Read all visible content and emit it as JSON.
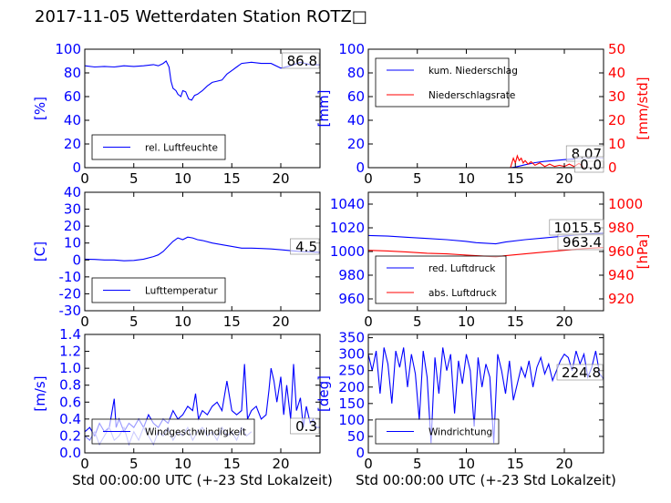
{
  "page": {
    "title": "2017-11-05 Wetterdaten Station ROTZ□"
  },
  "colors": {
    "primary": "#0000ff",
    "secondary": "#ff0000",
    "light_wind": "#8080ff",
    "axis": "#000000"
  },
  "chart_data": [
    {
      "id": "humidity",
      "type": "line",
      "title": "",
      "xlabel": "",
      "ylabel": "[%]",
      "xlim": [
        0,
        24
      ],
      "ylim": [
        0,
        100
      ],
      "xticks": [
        0,
        5,
        10,
        15,
        20
      ],
      "yticks": [
        0,
        20,
        40,
        60,
        80,
        100
      ],
      "legend_position": "lower-left",
      "series": [
        {
          "name": "rel. Luftfeuchte",
          "color": "#0000ff",
          "x": [
            0,
            1,
            2,
            3,
            4,
            5,
            6,
            7,
            7.5,
            8,
            8.3,
            8.6,
            8.8,
            9,
            9.3,
            9.5,
            9.8,
            10,
            10.3,
            10.6,
            10.9,
            11.2,
            11.5,
            12,
            12.5,
            13,
            13.5,
            14,
            14.5,
            15,
            15.5,
            16,
            17,
            18,
            19,
            20,
            21,
            22,
            23,
            24
          ],
          "y": [
            86,
            85,
            85.5,
            85,
            86,
            85.5,
            86,
            87,
            86,
            88,
            90,
            85,
            73,
            67,
            65,
            62,
            60,
            65,
            64,
            58,
            57,
            61,
            62,
            65,
            69,
            72,
            73,
            74,
            79,
            82,
            85,
            88,
            89,
            88,
            88,
            84,
            86,
            89,
            87,
            86.8
          ]
        }
      ],
      "annotations": [
        {
          "text": "86.8"
        }
      ]
    },
    {
      "id": "precipitation",
      "type": "line",
      "title": "",
      "xlabel": "",
      "ylabel": "[mm]",
      "ylabel_right": "[mm/std]",
      "xlim": [
        0,
        24
      ],
      "ylim": [
        0,
        100
      ],
      "ylim_right": [
        0,
        50
      ],
      "xticks": [
        0,
        5,
        10,
        15,
        20
      ],
      "yticks": [
        0,
        20,
        40,
        60,
        80,
        100
      ],
      "yticks_right": [
        0,
        10,
        20,
        30,
        40,
        50
      ],
      "legend_position": "upper-left",
      "series": [
        {
          "name": "kum. Niederschlag",
          "axis": "left",
          "color": "#0000ff",
          "x": [
            0,
            14.5,
            15,
            16,
            17,
            18,
            19,
            20,
            21,
            22,
            23,
            24
          ],
          "y": [
            0,
            0,
            0.5,
            2.5,
            4.2,
            5.3,
            6.0,
            6.8,
            7.4,
            7.8,
            8.0,
            8.07
          ]
        },
        {
          "name": "Niederschlagsrate",
          "axis": "right",
          "color": "#ff0000",
          "x": [
            0,
            14.5,
            14.8,
            15.0,
            15.2,
            15.4,
            15.6,
            15.8,
            16.0,
            16.3,
            16.6,
            17.0,
            17.5,
            18,
            18.5,
            19,
            19.5,
            20,
            20.5,
            21,
            21.5,
            22,
            24
          ],
          "y": [
            0,
            0,
            4,
            2,
            5,
            3,
            4,
            2,
            3,
            1.5,
            2.5,
            1,
            2,
            0.5,
            1.5,
            0.5,
            1,
            0.5,
            1.5,
            0.5,
            1.8,
            0,
            0
          ]
        }
      ],
      "annotations": [
        {
          "text": "8.07"
        },
        {
          "text": "0.0"
        }
      ]
    },
    {
      "id": "temperature",
      "type": "line",
      "title": "",
      "xlabel": "",
      "ylabel": "[C]",
      "xlim": [
        0,
        24
      ],
      "ylim": [
        -30,
        40
      ],
      "xticks": [
        0,
        5,
        10,
        15,
        20
      ],
      "yticks": [
        -30,
        -20,
        -10,
        0,
        10,
        20,
        30,
        40
      ],
      "legend_position": "lower-left",
      "series": [
        {
          "name": "Lufttemperatur",
          "color": "#0000ff",
          "x": [
            0,
            1,
            2,
            3,
            4,
            5,
            6,
            7,
            7.5,
            8,
            8.5,
            9,
            9.5,
            10,
            10.5,
            11,
            11.5,
            12,
            13,
            14,
            15,
            16,
            17,
            18,
            19,
            20,
            21,
            22,
            23,
            24
          ],
          "y": [
            0.5,
            0.3,
            0,
            0,
            -0.5,
            -0.3,
            0.5,
            2,
            3,
            5,
            8,
            11,
            13,
            12,
            13.5,
            13,
            12,
            11.5,
            10,
            9,
            8,
            7,
            7,
            6.8,
            6.5,
            6,
            5.5,
            5,
            4.8,
            4.5
          ]
        }
      ],
      "annotations": [
        {
          "text": "4.5"
        }
      ]
    },
    {
      "id": "pressure",
      "type": "line",
      "title": "",
      "xlabel": "",
      "ylabel": "",
      "ylabel_right": "[hPa]",
      "xlim": [
        0,
        24
      ],
      "ylim": [
        950,
        1050
      ],
      "ylim_right": [
        910,
        1010
      ],
      "xticks": [
        0,
        5,
        10,
        15,
        20
      ],
      "yticks": [
        960,
        980,
        1000,
        1020,
        1040
      ],
      "yticks_right": [
        920,
        940,
        960,
        980,
        1000
      ],
      "legend_position": "lower-left",
      "series": [
        {
          "name": "red. Luftdruck",
          "axis": "left",
          "color": "#0000ff",
          "x": [
            0,
            2,
            4,
            6,
            8,
            10,
            11,
            12,
            13,
            14,
            16,
            18,
            20,
            22,
            24
          ],
          "y": [
            1013.5,
            1013,
            1012,
            1011,
            1010,
            1008.5,
            1007.5,
            1007,
            1006.5,
            1008,
            1010,
            1011.5,
            1013,
            1014.5,
            1015.5
          ]
        },
        {
          "name": "abs. Luftdruck",
          "axis": "right",
          "color": "#ff0000",
          "x": [
            0,
            2,
            4,
            6,
            8,
            10,
            11,
            12,
            13,
            14,
            16,
            18,
            20,
            22,
            24
          ],
          "y": [
            961,
            960.5,
            959.5,
            958.5,
            958,
            957,
            956.5,
            956,
            955.5,
            956.5,
            958,
            959.5,
            961,
            962.5,
            963.4
          ]
        }
      ],
      "annotations": [
        {
          "text": "1015.5"
        },
        {
          "text": "963.4"
        }
      ]
    },
    {
      "id": "windspeed",
      "type": "line",
      "title": "",
      "xlabel": "Std 00:00:00 UTC (+-23 Std Lokalzeit)",
      "ylabel": "[m/s]",
      "xlim": [
        0,
        24
      ],
      "ylim": [
        0,
        1.4
      ],
      "xticks": [
        0,
        5,
        10,
        15,
        20
      ],
      "yticks": [
        0.0,
        0.2,
        0.4,
        0.6,
        0.8,
        1.0,
        1.2,
        1.4
      ],
      "legend_position": "lower-left",
      "series": [
        {
          "name": "Windgeschwindigkeit",
          "color": "#0000ff",
          "x": [
            0,
            0.5,
            1,
            1.5,
            2,
            2.5,
            3,
            3.2,
            3.5,
            4,
            4.5,
            5,
            5.5,
            6,
            6.5,
            7,
            7.5,
            8,
            8.5,
            9,
            9.5,
            10,
            10.5,
            11,
            11.3,
            11.6,
            12,
            12.5,
            13,
            13.5,
            14,
            14.5,
            15,
            15.5,
            16,
            16.3,
            16.6,
            17,
            17.5,
            18,
            18.5,
            18.8,
            19,
            19.3,
            19.6,
            20,
            20.3,
            20.6,
            21,
            21.3,
            21.6,
            22,
            22.3,
            22.6,
            23,
            23.3,
            23.6,
            24
          ],
          "y": [
            0.25,
            0.3,
            0.2,
            0.35,
            0.25,
            0.3,
            0.64,
            0.3,
            0.4,
            0.25,
            0.35,
            0.3,
            0.4,
            0.3,
            0.45,
            0.35,
            0.3,
            0.4,
            0.35,
            0.5,
            0.4,
            0.45,
            0.55,
            0.5,
            0.7,
            0.4,
            0.5,
            0.45,
            0.55,
            0.6,
            0.5,
            0.85,
            0.5,
            0.45,
            0.5,
            1.05,
            0.4,
            0.5,
            0.55,
            0.4,
            0.45,
            0.75,
            1.0,
            0.85,
            0.6,
            0.9,
            0.45,
            0.8,
            0.4,
            1.05,
            0.5,
            0.65,
            0.3,
            0.55,
            0.35,
            0.4,
            0.3,
            0.3
          ]
        },
        {
          "name": "",
          "color": "#8080ff",
          "x": [
            0,
            0.5,
            1,
            1.5,
            2,
            2.5,
            3,
            3.5,
            4,
            4.5,
            5,
            5.5,
            6,
            6.5,
            7,
            7.5,
            8,
            8.5,
            9,
            9.5,
            10,
            10.5,
            11,
            11.5,
            12,
            12.5,
            13,
            13.5,
            14,
            14.5,
            15,
            15.5,
            16,
            16.5,
            17
          ],
          "y": [
            0.2,
            0.15,
            0.25,
            0.1,
            0.2,
            0.3,
            0.15,
            0.2,
            0.3,
            0.1,
            0.25,
            0.15,
            0.3,
            0.2,
            0.1,
            0.25,
            0.2,
            0.3,
            0.15,
            0.25,
            0.2,
            0.3,
            0.15,
            0.25,
            0.3,
            0.2,
            0.25,
            0.15,
            0.3,
            0.2,
            0.25,
            0.15,
            0.3,
            0.2,
            0.25
          ]
        }
      ],
      "annotations": [
        {
          "text": "0.3"
        }
      ]
    },
    {
      "id": "winddirection",
      "type": "line",
      "title": "",
      "xlabel": "Std 00:00:00 UTC (+-23 Std Lokalzeit)",
      "ylabel": "[deg]",
      "xlim": [
        0,
        24
      ],
      "ylim": [
        0,
        360
      ],
      "xticks": [
        0,
        5,
        10,
        15,
        20
      ],
      "yticks": [
        0,
        50,
        100,
        150,
        200,
        250,
        300,
        350
      ],
      "legend_position": "lower-left",
      "series": [
        {
          "name": "Windrichtung",
          "color": "#0000ff",
          "x": [
            0,
            0.4,
            0.8,
            1.2,
            1.6,
            2,
            2.4,
            2.8,
            3.2,
            3.6,
            4,
            4.4,
            4.8,
            5.2,
            5.6,
            6,
            6.4,
            6.8,
            7.2,
            7.6,
            8,
            8.4,
            8.8,
            9.2,
            9.6,
            10,
            10.4,
            10.8,
            11.2,
            11.6,
            12,
            12.4,
            12.8,
            13.2,
            13.6,
            14,
            14.4,
            14.8,
            15.2,
            15.6,
            16,
            16.4,
            16.8,
            17.2,
            17.6,
            18,
            18.4,
            18.8,
            19.2,
            19.6,
            20,
            20.4,
            20.8,
            21.2,
            21.6,
            22,
            22.4,
            22.8,
            23.2,
            23.6,
            24
          ],
          "y": [
            300,
            250,
            310,
            180,
            320,
            270,
            150,
            310,
            260,
            320,
            200,
            300,
            240,
            100,
            310,
            230,
            30,
            290,
            180,
            320,
            250,
            300,
            120,
            280,
            210,
            300,
            250,
            80,
            290,
            200,
            270,
            230,
            30,
            300,
            250,
            180,
            280,
            160,
            210,
            260,
            230,
            280,
            200,
            260,
            290,
            240,
            270,
            220,
            250,
            280,
            300,
            290,
            250,
            310,
            270,
            300,
            230,
            260,
            310,
            240,
            224.8
          ]
        }
      ],
      "annotations": [
        {
          "text": "224.8"
        }
      ]
    }
  ]
}
